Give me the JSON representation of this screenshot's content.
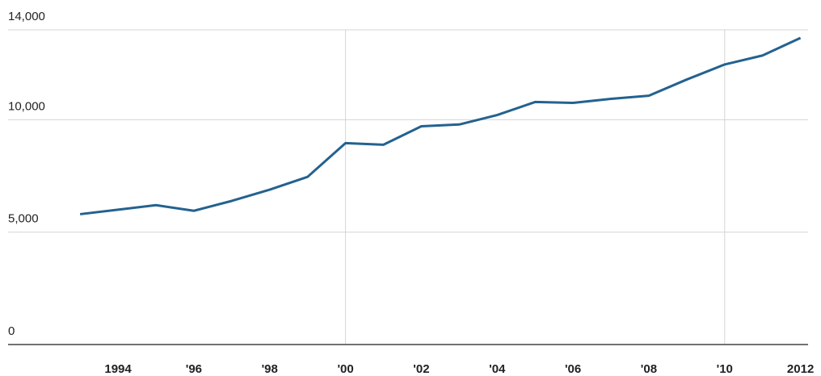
{
  "chart_data": {
    "type": "line",
    "x": [
      1993,
      1994,
      1995,
      1996,
      1997,
      1998,
      1999,
      2000,
      2001,
      2002,
      2003,
      2004,
      2005,
      2006,
      2007,
      2008,
      2009,
      2010,
      2011,
      2012
    ],
    "series": [
      {
        "color": "#23628f",
        "values": [
          5800,
          6000,
          6200,
          5950,
          6390,
          6890,
          7460,
          8960,
          8890,
          9710,
          9790,
          10210,
          10790,
          10750,
          10930,
          11070,
          11790,
          12460,
          12860,
          13640
        ]
      }
    ],
    "xlim": [
      1991.1,
      2012.2
    ],
    "xticks": [
      1994,
      {
        "value": 1996,
        "label": "'96"
      },
      {
        "value": 1998,
        "label": "'98"
      },
      {
        "value": 2000,
        "label": "'00"
      },
      {
        "value": 2002,
        "label": "'02"
      },
      {
        "value": 2004,
        "label": "'04"
      },
      {
        "value": 2006,
        "label": "'06"
      },
      {
        "value": 2008,
        "label": "'08"
      },
      {
        "value": 2010,
        "label": "'10"
      },
      2012
    ],
    "x_gridlines": [
      2000,
      2010
    ],
    "ylim": [
      0,
      14000
    ],
    "yticks": [
      0,
      {
        "value": 5000,
        "label": "5,000"
      },
      {
        "value": 10000,
        "label": "10,000"
      },
      {
        "value": 14000,
        "label": "14,000"
      }
    ],
    "grid": true
  }
}
